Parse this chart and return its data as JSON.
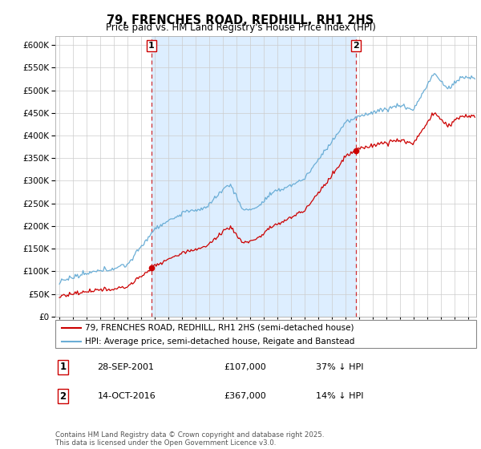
{
  "title": "79, FRENCHES ROAD, REDHILL, RH1 2HS",
  "subtitle": "Price paid vs. HM Land Registry's House Price Index (HPI)",
  "legend_line1": "79, FRENCHES ROAD, REDHILL, RH1 2HS (semi-detached house)",
  "legend_line2": "HPI: Average price, semi-detached house, Reigate and Banstead",
  "annotation1_date": "28-SEP-2001",
  "annotation1_price": "£107,000",
  "annotation1_hpi": "37% ↓ HPI",
  "annotation2_date": "14-OCT-2016",
  "annotation2_price": "£367,000",
  "annotation2_hpi": "14% ↓ HPI",
  "footer": "Contains HM Land Registry data © Crown copyright and database right 2025.\nThis data is licensed under the Open Government Licence v3.0.",
  "price_paid_color": "#cc0000",
  "hpi_color": "#6baed6",
  "shade_color": "#ddeeff",
  "ylim": [
    0,
    620000
  ],
  "yticks": [
    0,
    50000,
    100000,
    150000,
    200000,
    250000,
    300000,
    350000,
    400000,
    450000,
    500000,
    550000,
    600000
  ],
  "t1": 2001.75,
  "t2": 2016.79,
  "p1": 107000,
  "p2": 367000
}
